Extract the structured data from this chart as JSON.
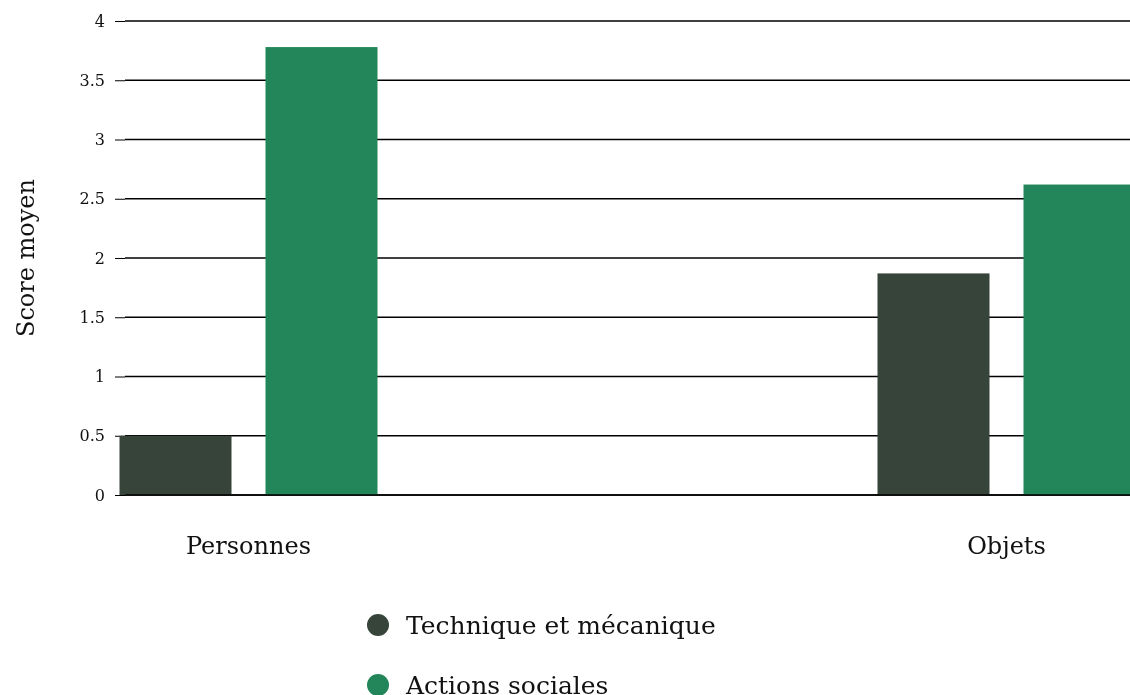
{
  "chart_data": {
    "type": "bar",
    "ylabel": "Score moyen",
    "categories": [
      "Personnes",
      "Objets"
    ],
    "series": [
      {
        "name": "Technique et mécanique",
        "color": "#36443a",
        "values": [
          0.5,
          1.87
        ]
      },
      {
        "name": "Actions sociales",
        "color": "#23865a",
        "values": [
          3.78,
          2.62
        ]
      }
    ],
    "ylim": [
      0,
      4
    ],
    "yticks": [
      0,
      {
        "value": 0.5,
        "label": "0.5"
      },
      1,
      {
        "value": 1.5,
        "label": "1.5"
      },
      2,
      {
        "value": 2.5,
        "label": "2.5"
      },
      3,
      {
        "value": 3.5,
        "label": "3.5"
      },
      4
    ],
    "grid": "y",
    "legend": "bottom"
  }
}
